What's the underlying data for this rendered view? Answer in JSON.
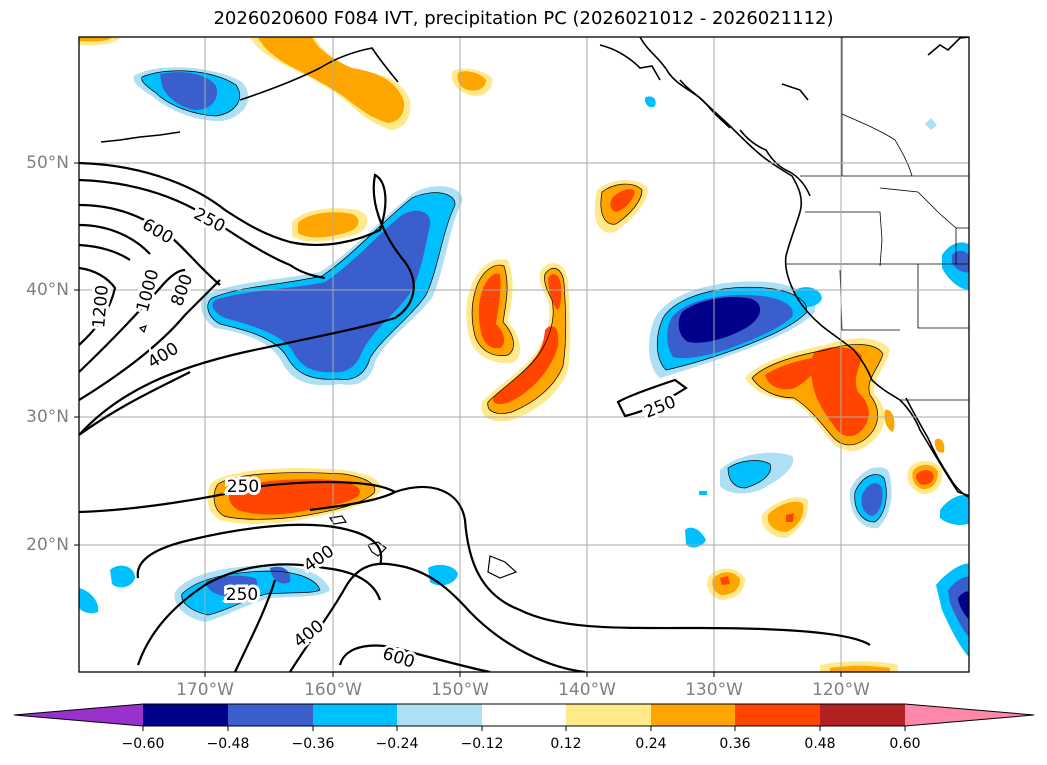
{
  "title": "2026020600 F084 IVT, precipitation PC (2026021012 - 2026021112)",
  "axes": {
    "lon_labels": [
      "170°W",
      "160°W",
      "150°W",
      "140°W",
      "130°W",
      "120°W"
    ],
    "lat_labels": [
      "50°N",
      "40°N",
      "30°N",
      "20°N"
    ]
  },
  "colorbar": {
    "ticks": [
      "−0.60",
      "−0.48",
      "−0.36",
      "−0.24",
      "−0.12",
      "0.12",
      "0.24",
      "0.36",
      "0.48",
      "0.60"
    ],
    "colors": [
      "#9932CC",
      "#00008B",
      "#3A5FCD",
      "#00BFFF",
      "#ADE0F5",
      "#FFFFFF",
      "#FFE98A",
      "#FFA500",
      "#FF4500",
      "#B22222",
      "#FF88AA"
    ]
  },
  "contour_labels": [
    "250",
    "600",
    "1200",
    "1000",
    "800",
    "400",
    "250",
    "250",
    "400",
    "250",
    "400",
    "600"
  ]
}
